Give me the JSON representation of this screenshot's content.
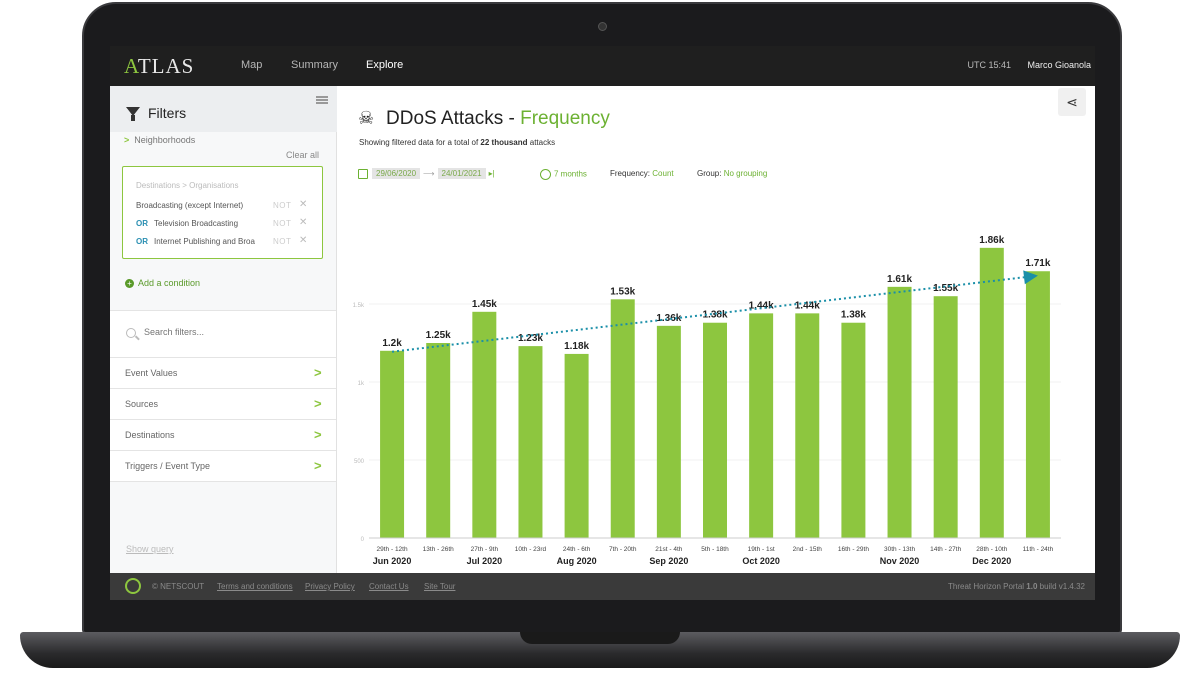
{
  "header": {
    "logo": "ATLAS",
    "nav": [
      "Map",
      "Summary",
      "Explore"
    ],
    "active_nav": "Explore",
    "time": "UTC 15:41",
    "user": "Marco Gioanola"
  },
  "sidebar": {
    "title": "Filters",
    "neighborhoods": "Neighborhoods",
    "clear_all": "Clear all",
    "condition_title": "Destinations > Organisations",
    "conditions": [
      {
        "prefix": "",
        "label": "Broadcasting (except Internet)",
        "not": "NOT"
      },
      {
        "prefix": "OR",
        "label": "Television Broadcasting",
        "not": "NOT"
      },
      {
        "prefix": "OR",
        "label": "Internet Publishing and Broa",
        "not": "NOT"
      }
    ],
    "add_condition": "Add a condition",
    "search_placeholder": "Search filters...",
    "categories": [
      "Event Values",
      "Sources",
      "Destinations",
      "Triggers / Event Type"
    ],
    "show_query": "Show query"
  },
  "main": {
    "title_a": "DDoS Attacks - ",
    "title_b": "Frequency",
    "subtitle_a": "Showing filtered data for a total of ",
    "subtitle_b": "22 thousand",
    "subtitle_c": " attacks",
    "date_from": "29/06/2020",
    "date_to": "24/01/2021",
    "duration": "7 months",
    "frequency_label": "Frequency:",
    "frequency_value": "Count",
    "group_label": "Group:",
    "group_value": "No grouping"
  },
  "chart_data": {
    "type": "bar",
    "categories": [
      "29th - 12th",
      "13th - 26th",
      "27th - 9th",
      "10th - 23rd",
      "24th - 6th",
      "7th - 20th",
      "21st - 4th",
      "5th - 18th",
      "19th - 1st",
      "2nd - 15th",
      "16th - 29th",
      "30th - 13th",
      "14th - 27th",
      "28th - 10th",
      "11th - 24th"
    ],
    "values": [
      1200,
      1250,
      1450,
      1230,
      1180,
      1530,
      1360,
      1380,
      1440,
      1440,
      1380,
      1610,
      1550,
      1860,
      1710
    ],
    "labels": [
      "1.2k",
      "1.25k",
      "1.45k",
      "1.23k",
      "1.18k",
      "1.53k",
      "1.36k",
      "1.38k",
      "1.44k",
      "1.44k",
      "1.38k",
      "1.61k",
      "1.55k",
      "1.86k",
      "1.71k"
    ],
    "months": [
      {
        "label": "Jun 2020",
        "index": 0
      },
      {
        "label": "Jul 2020",
        "index": 2
      },
      {
        "label": "Aug 2020",
        "index": 4
      },
      {
        "label": "Sep 2020",
        "index": 6
      },
      {
        "label": "Oct 2020",
        "index": 8
      },
      {
        "label": "Nov 2020",
        "index": 11
      },
      {
        "label": "Dec 2020",
        "index": 13
      }
    ],
    "yticks": [
      {
        "value": 0,
        "label": "0"
      },
      {
        "value": 500,
        "label": "500"
      },
      {
        "value": 1000,
        "label": "1k"
      },
      {
        "value": 1500,
        "label": "1.5k"
      }
    ],
    "ylim": [
      0,
      2000
    ],
    "trendline": true,
    "bar_color": "#8dc63f",
    "trend_color": "#1a8fa8"
  },
  "footer": {
    "copyright": "© NETSCOUT",
    "links": [
      "Terms and conditions",
      "Privacy Policy",
      "Contact Us",
      "Site Tour"
    ],
    "version_a": "Threat Horizon Portal ",
    "version_b": "1.0",
    "version_c": "  build v1.4.32"
  }
}
